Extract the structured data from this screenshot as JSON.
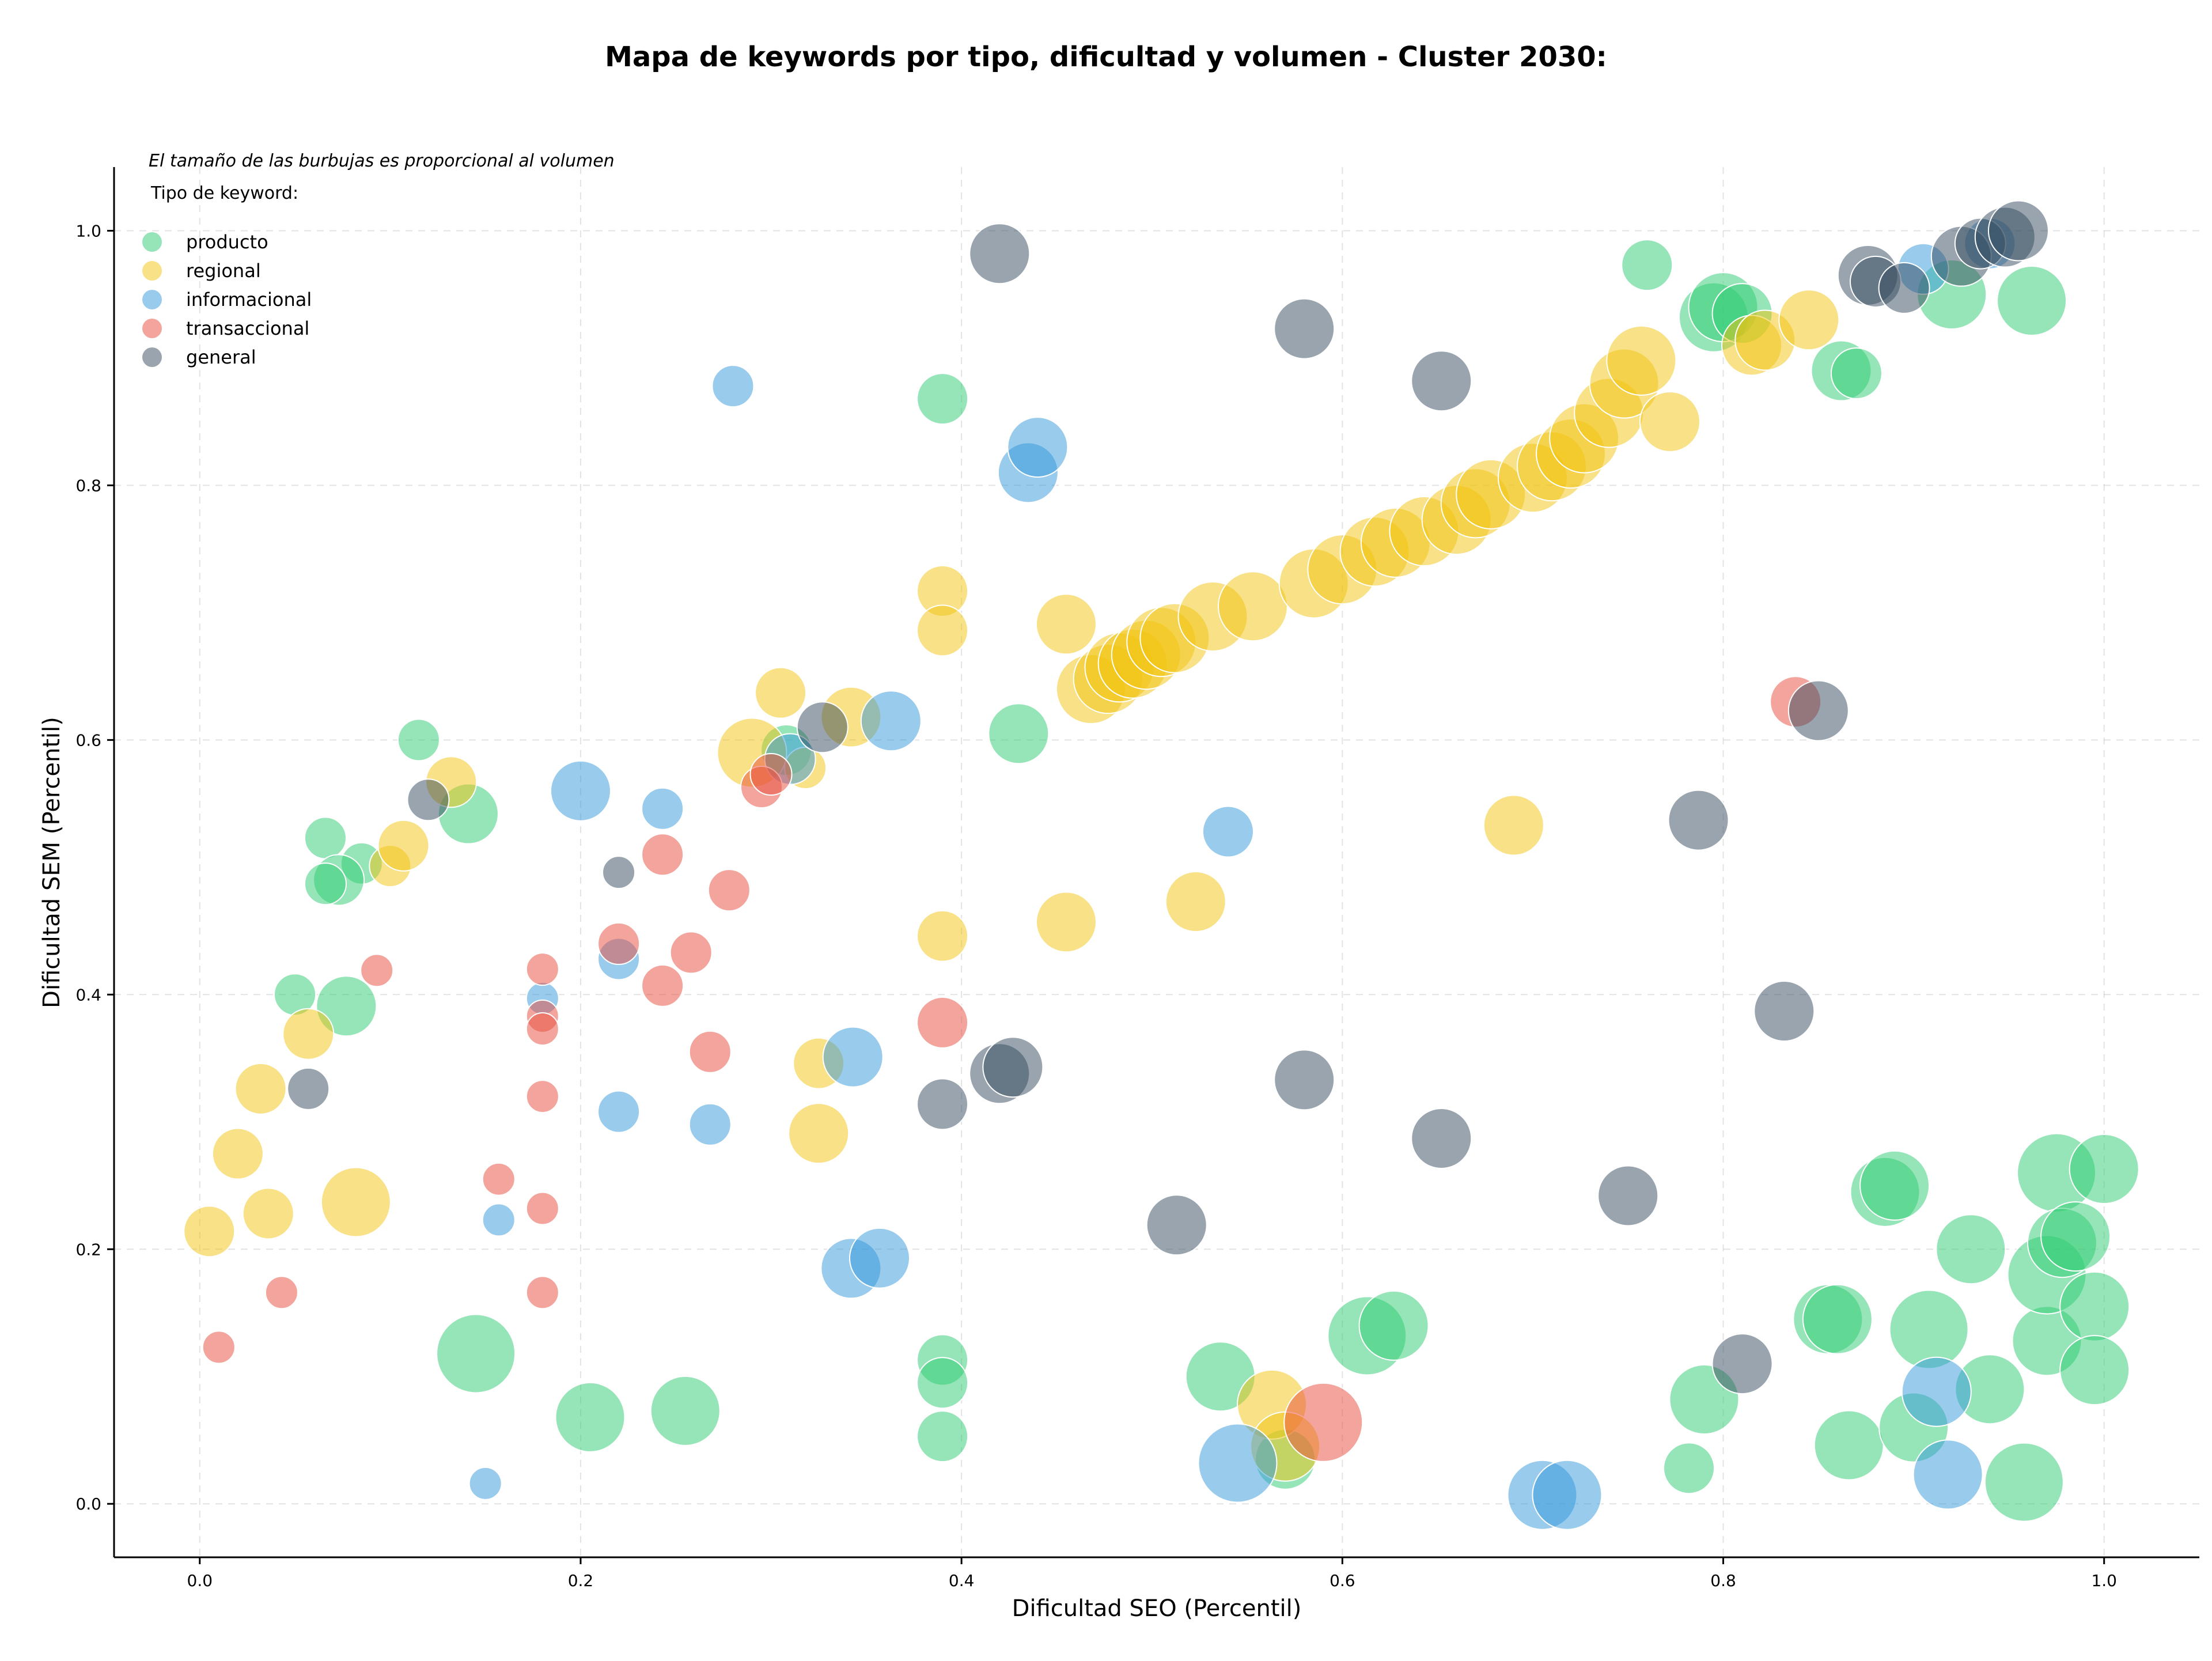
{
  "chart_data": {
    "type": "scatter",
    "title": "Mapa de keywords por tipo, dificultad y volumen - Cluster 2030:",
    "xlabel": "Dificultad SEO (Percentil)",
    "ylabel": "Dificultad SEM (Percentil)",
    "xlim": [
      -0.045,
      1.05
    ],
    "ylim": [
      -0.042,
      1.05
    ],
    "xticks": [
      "0.0",
      "0.2",
      "0.4",
      "0.6",
      "0.8",
      "1.0"
    ],
    "yticks": [
      "0.0",
      "0.2",
      "0.4",
      "0.6",
      "0.8",
      "1.0"
    ],
    "grid": true,
    "note": "El tamaño de las burbujas es proporcional al volumen",
    "legend_title": "Tipo de keyword:",
    "legend_position": "top-left",
    "size_scale": "radius proportional to volume index (1-10)",
    "series": [
      {
        "name": "producto",
        "color": "#2ecc71",
        "points": [
          [
            0.115,
            0.6,
            3
          ],
          [
            0.066,
            0.523,
            3
          ],
          [
            0.085,
            0.503,
            3
          ],
          [
            0.073,
            0.49,
            4
          ],
          [
            0.066,
            0.487,
            3
          ],
          [
            0.141,
            0.542,
            5
          ],
          [
            0.05,
            0.4,
            3
          ],
          [
            0.077,
            0.391,
            5
          ],
          [
            0.145,
            0.118,
            7
          ],
          [
            0.205,
            0.068,
            6
          ],
          [
            0.255,
            0.073,
            6
          ],
          [
            0.39,
            0.868,
            4
          ],
          [
            0.43,
            0.605,
            5
          ],
          [
            0.308,
            0.592,
            4
          ],
          [
            0.39,
            0.113,
            4
          ],
          [
            0.39,
            0.095,
            4
          ],
          [
            0.39,
            0.053,
            4
          ],
          [
            0.536,
            0.1,
            6
          ],
          [
            0.57,
            0.035,
            5
          ],
          [
            0.613,
            0.132,
            7
          ],
          [
            0.627,
            0.14,
            6
          ],
          [
            0.76,
            0.973,
            4
          ],
          [
            0.795,
            0.932,
            6
          ],
          [
            0.8,
            0.94,
            6
          ],
          [
            0.81,
            0.935,
            5
          ],
          [
            0.862,
            0.89,
            5
          ],
          [
            0.87,
            0.888,
            4
          ],
          [
            0.92,
            0.95,
            6
          ],
          [
            0.962,
            0.945,
            6
          ],
          [
            0.782,
            0.028,
            4
          ],
          [
            0.79,
            0.082,
            6
          ],
          [
            0.855,
            0.145,
            6
          ],
          [
            0.86,
            0.145,
            6
          ],
          [
            0.866,
            0.046,
            6
          ],
          [
            0.885,
            0.245,
            6
          ],
          [
            0.89,
            0.25,
            6
          ],
          [
            0.9,
            0.06,
            6
          ],
          [
            0.908,
            0.137,
            7
          ],
          [
            0.93,
            0.2,
            6
          ],
          [
            0.94,
            0.09,
            6
          ],
          [
            0.958,
            0.017,
            7
          ],
          [
            0.97,
            0.128,
            6
          ],
          [
            0.97,
            0.18,
            7
          ],
          [
            0.975,
            0.26,
            7
          ],
          [
            0.978,
            0.205,
            6
          ],
          [
            0.985,
            0.21,
            6
          ],
          [
            0.995,
            0.155,
            6
          ],
          [
            0.995,
            0.105,
            6
          ],
          [
            1.0,
            0.263,
            6
          ]
        ]
      },
      {
        "name": "regional",
        "color": "#f1c40f",
        "points": [
          [
            0.005,
            0.214,
            4
          ],
          [
            0.02,
            0.275,
            4
          ],
          [
            0.032,
            0.326,
            4
          ],
          [
            0.036,
            0.228,
            4
          ],
          [
            0.057,
            0.369,
            4
          ],
          [
            0.082,
            0.237,
            6
          ],
          [
            0.1,
            0.501,
            3
          ],
          [
            0.107,
            0.517,
            4
          ],
          [
            0.132,
            0.567,
            4
          ],
          [
            0.29,
            0.59,
            6
          ],
          [
            0.305,
            0.637,
            4
          ],
          [
            0.318,
            0.578,
            3
          ],
          [
            0.342,
            0.618,
            5
          ],
          [
            0.325,
            0.346,
            4
          ],
          [
            0.325,
            0.291,
            5
          ],
          [
            0.39,
            0.717,
            4
          ],
          [
            0.39,
            0.686,
            4
          ],
          [
            0.39,
            0.446,
            4
          ],
          [
            0.455,
            0.691,
            5
          ],
          [
            0.455,
            0.457,
            5
          ],
          [
            0.468,
            0.64,
            6
          ],
          [
            0.477,
            0.648,
            6
          ],
          [
            0.483,
            0.657,
            6
          ],
          [
            0.49,
            0.66,
            6
          ],
          [
            0.497,
            0.667,
            6
          ],
          [
            0.505,
            0.677,
            6
          ],
          [
            0.512,
            0.68,
            6
          ],
          [
            0.523,
            0.473,
            5
          ],
          [
            0.532,
            0.697,
            6
          ],
          [
            0.553,
            0.705,
            6
          ],
          [
            0.585,
            0.723,
            6
          ],
          [
            0.6,
            0.734,
            6
          ],
          [
            0.617,
            0.748,
            6
          ],
          [
            0.628,
            0.755,
            6
          ],
          [
            0.643,
            0.764,
            6
          ],
          [
            0.66,
            0.773,
            6
          ],
          [
            0.67,
            0.786,
            6
          ],
          [
            0.678,
            0.793,
            6
          ],
          [
            0.69,
            0.533,
            5
          ],
          [
            0.7,
            0.806,
            6
          ],
          [
            0.71,
            0.815,
            6
          ],
          [
            0.72,
            0.825,
            6
          ],
          [
            0.727,
            0.837,
            6
          ],
          [
            0.74,
            0.857,
            6
          ],
          [
            0.748,
            0.88,
            6
          ],
          [
            0.757,
            0.898,
            6
          ],
          [
            0.772,
            0.85,
            5
          ],
          [
            0.815,
            0.91,
            5
          ],
          [
            0.822,
            0.914,
            5
          ],
          [
            0.845,
            0.93,
            5
          ],
          [
            0.563,
            0.078,
            6
          ],
          [
            0.57,
            0.045,
            6
          ]
        ]
      },
      {
        "name": "informacional",
        "color": "#3498db",
        "points": [
          [
            0.28,
            0.878,
            3
          ],
          [
            0.2,
            0.56,
            5
          ],
          [
            0.243,
            0.546,
            3
          ],
          [
            0.22,
            0.428,
            3
          ],
          [
            0.22,
            0.308,
            3
          ],
          [
            0.18,
            0.397,
            2
          ],
          [
            0.157,
            0.223,
            2
          ],
          [
            0.15,
            0.016,
            2
          ],
          [
            0.268,
            0.298,
            3
          ],
          [
            0.31,
            0.585,
            4
          ],
          [
            0.343,
            0.351,
            5
          ],
          [
            0.342,
            0.185,
            5
          ],
          [
            0.357,
            0.193,
            5
          ],
          [
            0.363,
            0.615,
            5
          ],
          [
            0.435,
            0.81,
            5
          ],
          [
            0.44,
            0.83,
            5
          ],
          [
            0.54,
            0.528,
            4
          ],
          [
            0.545,
            0.032,
            7
          ],
          [
            0.705,
            0.007,
            6
          ],
          [
            0.718,
            0.007,
            6
          ],
          [
            0.905,
            0.97,
            4
          ],
          [
            0.912,
            0.088,
            6
          ],
          [
            0.918,
            0.023,
            6
          ],
          [
            0.94,
            0.99,
            4
          ]
        ]
      },
      {
        "name": "transaccional",
        "color": "#e74c3c",
        "points": [
          [
            0.01,
            0.123,
            2
          ],
          [
            0.043,
            0.166,
            2
          ],
          [
            0.093,
            0.419,
            2
          ],
          [
            0.157,
            0.255,
            2
          ],
          [
            0.18,
            0.42,
            2
          ],
          [
            0.18,
            0.383,
            2
          ],
          [
            0.18,
            0.373,
            2
          ],
          [
            0.18,
            0.32,
            2
          ],
          [
            0.18,
            0.232,
            2
          ],
          [
            0.18,
            0.166,
            2
          ],
          [
            0.22,
            0.44,
            3
          ],
          [
            0.243,
            0.51,
            3
          ],
          [
            0.243,
            0.407,
            3
          ],
          [
            0.258,
            0.433,
            3
          ],
          [
            0.268,
            0.355,
            3
          ],
          [
            0.278,
            0.482,
            3
          ],
          [
            0.295,
            0.563,
            3
          ],
          [
            0.3,
            0.573,
            3
          ],
          [
            0.39,
            0.378,
            4
          ],
          [
            0.59,
            0.064,
            7
          ],
          [
            0.838,
            0.63,
            4
          ]
        ]
      },
      {
        "name": "general",
        "color": "#34495e",
        "points": [
          [
            0.057,
            0.326,
            3
          ],
          [
            0.12,
            0.553,
            3
          ],
          [
            0.22,
            0.496,
            2
          ],
          [
            0.327,
            0.61,
            4
          ],
          [
            0.39,
            0.314,
            4
          ],
          [
            0.42,
            0.982,
            5
          ],
          [
            0.42,
            0.338,
            5
          ],
          [
            0.427,
            0.343,
            5
          ],
          [
            0.513,
            0.219,
            5
          ],
          [
            0.58,
            0.923,
            5
          ],
          [
            0.58,
            0.333,
            5
          ],
          [
            0.652,
            0.882,
            5
          ],
          [
            0.652,
            0.287,
            5
          ],
          [
            0.75,
            0.242,
            5
          ],
          [
            0.787,
            0.537,
            5
          ],
          [
            0.81,
            0.11,
            5
          ],
          [
            0.832,
            0.387,
            5
          ],
          [
            0.85,
            0.623,
            5
          ],
          [
            0.876,
            0.965,
            5
          ],
          [
            0.88,
            0.96,
            4
          ],
          [
            0.895,
            0.955,
            4
          ],
          [
            0.925,
            0.98,
            5
          ],
          [
            0.935,
            0.99,
            4
          ],
          [
            0.948,
            0.995,
            5
          ],
          [
            0.955,
            1.0,
            5
          ]
        ]
      }
    ]
  }
}
